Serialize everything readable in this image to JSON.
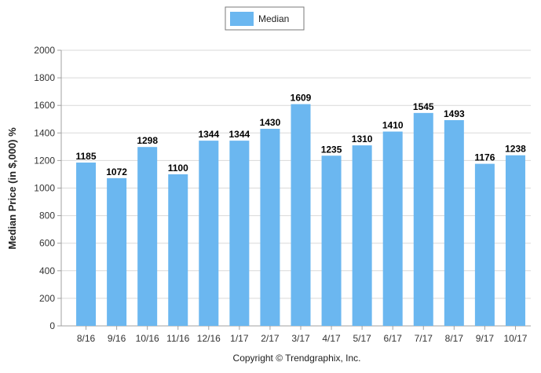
{
  "chart_data": {
    "type": "bar",
    "categories": [
      "8/16",
      "9/16",
      "10/16",
      "11/16",
      "12/16",
      "1/17",
      "2/17",
      "3/17",
      "4/17",
      "5/17",
      "6/17",
      "7/17",
      "8/17",
      "9/17",
      "10/17"
    ],
    "series": [
      {
        "name": "Median",
        "values": [
          1185,
          1072,
          1298,
          1100,
          1344,
          1344,
          1430,
          1609,
          1235,
          1310,
          1410,
          1545,
          1493,
          1176,
          1238
        ],
        "color": "#6bb7f0"
      }
    ],
    "title": "",
    "xlabel": "",
    "ylabel": "Median Price (in $,000) %",
    "ylim": [
      0,
      2000
    ],
    "yticks": [
      0,
      200,
      400,
      600,
      800,
      1000,
      1200,
      1400,
      1600,
      1800,
      2000
    ],
    "grid": true,
    "legend_position": "top-center",
    "data_labels": true
  },
  "footer": {
    "copyright": "Copyright © Trendgraphix, Inc."
  },
  "colors": {
    "bar": "#6bb7f0",
    "grid": "#d9d9d9",
    "axis": "#a0a0a0",
    "text": "#333333"
  }
}
